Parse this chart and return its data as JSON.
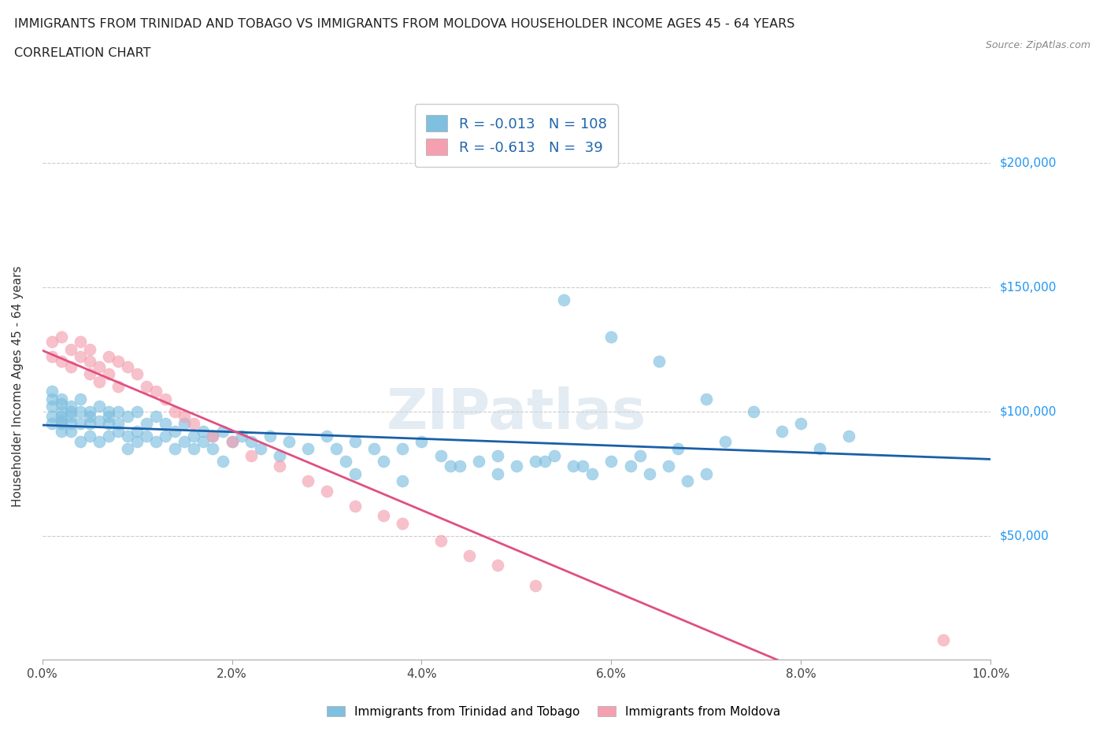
{
  "title_line1": "IMMIGRANTS FROM TRINIDAD AND TOBAGO VS IMMIGRANTS FROM MOLDOVA HOUSEHOLDER INCOME AGES 45 - 64 YEARS",
  "title_line2": "CORRELATION CHART",
  "source_text": "Source: ZipAtlas.com",
  "ylabel": "Householder Income Ages 45 - 64 years",
  "xlim": [
    0.0,
    0.1
  ],
  "ylim": [
    0,
    220000
  ],
  "xticks": [
    0.0,
    0.02,
    0.04,
    0.06,
    0.08,
    0.1
  ],
  "xticklabels": [
    "0.0%",
    "2.0%",
    "4.0%",
    "6.0%",
    "8.0%",
    "10.0%"
  ],
  "yticks": [
    0,
    50000,
    100000,
    150000,
    200000
  ],
  "yticklabels": [
    "",
    "$50,000",
    "$100,000",
    "$150,000",
    "$200,000"
  ],
  "color_tt": "#7fbfdf",
  "color_md": "#f4a0b0",
  "color_tt_line": "#1a5fa8",
  "color_md_line": "#e05080",
  "R_tt": -0.013,
  "N_tt": 108,
  "R_md": -0.613,
  "N_md": 39,
  "legend_label_tt": "Immigrants from Trinidad and Tobago",
  "legend_label_md": "Immigrants from Moldova",
  "watermark": "ZIPatlas",
  "background_color": "#ffffff",
  "grid_color": "#cccccc",
  "tt_x": [
    0.001,
    0.001,
    0.001,
    0.001,
    0.001,
    0.002,
    0.002,
    0.002,
    0.002,
    0.002,
    0.002,
    0.002,
    0.003,
    0.003,
    0.003,
    0.003,
    0.003,
    0.004,
    0.004,
    0.004,
    0.004,
    0.005,
    0.005,
    0.005,
    0.005,
    0.006,
    0.006,
    0.006,
    0.007,
    0.007,
    0.007,
    0.007,
    0.008,
    0.008,
    0.008,
    0.009,
    0.009,
    0.009,
    0.01,
    0.01,
    0.01,
    0.011,
    0.011,
    0.012,
    0.012,
    0.013,
    0.013,
    0.014,
    0.014,
    0.015,
    0.015,
    0.016,
    0.016,
    0.017,
    0.017,
    0.018,
    0.018,
    0.019,
    0.019,
    0.02,
    0.021,
    0.022,
    0.023,
    0.024,
    0.025,
    0.026,
    0.028,
    0.03,
    0.031,
    0.032,
    0.033,
    0.035,
    0.036,
    0.038,
    0.04,
    0.042,
    0.044,
    0.046,
    0.048,
    0.05,
    0.052,
    0.054,
    0.056,
    0.058,
    0.06,
    0.062,
    0.064,
    0.066,
    0.068,
    0.07,
    0.055,
    0.06,
    0.065,
    0.07,
    0.075,
    0.08,
    0.085,
    0.082,
    0.078,
    0.072,
    0.067,
    0.063,
    0.057,
    0.053,
    0.048,
    0.043,
    0.038,
    0.033
  ],
  "tt_y": [
    102000,
    98000,
    105000,
    95000,
    108000,
    100000,
    95000,
    105000,
    92000,
    98000,
    103000,
    96000,
    100000,
    95000,
    102000,
    98000,
    92000,
    100000,
    95000,
    105000,
    88000,
    100000,
    95000,
    90000,
    98000,
    102000,
    96000,
    88000,
    100000,
    95000,
    90000,
    98000,
    100000,
    92000,
    95000,
    98000,
    90000,
    85000,
    100000,
    92000,
    88000,
    95000,
    90000,
    98000,
    88000,
    95000,
    90000,
    92000,
    85000,
    95000,
    88000,
    90000,
    85000,
    92000,
    88000,
    90000,
    85000,
    92000,
    80000,
    88000,
    90000,
    88000,
    85000,
    90000,
    82000,
    88000,
    85000,
    90000,
    85000,
    80000,
    88000,
    85000,
    80000,
    85000,
    88000,
    82000,
    78000,
    80000,
    82000,
    78000,
    80000,
    82000,
    78000,
    75000,
    80000,
    78000,
    75000,
    78000,
    72000,
    75000,
    145000,
    130000,
    120000,
    105000,
    100000,
    95000,
    90000,
    85000,
    92000,
    88000,
    85000,
    82000,
    78000,
    80000,
    75000,
    78000,
    72000,
    75000
  ],
  "md_x": [
    0.001,
    0.001,
    0.002,
    0.002,
    0.003,
    0.003,
    0.004,
    0.004,
    0.005,
    0.005,
    0.005,
    0.006,
    0.006,
    0.007,
    0.007,
    0.008,
    0.008,
    0.009,
    0.01,
    0.011,
    0.012,
    0.013,
    0.014,
    0.015,
    0.016,
    0.018,
    0.02,
    0.022,
    0.025,
    0.028,
    0.03,
    0.033,
    0.036,
    0.038,
    0.042,
    0.045,
    0.048,
    0.052,
    0.095
  ],
  "md_y": [
    128000,
    122000,
    130000,
    120000,
    125000,
    118000,
    128000,
    122000,
    120000,
    115000,
    125000,
    118000,
    112000,
    122000,
    115000,
    120000,
    110000,
    118000,
    115000,
    110000,
    108000,
    105000,
    100000,
    98000,
    95000,
    90000,
    88000,
    82000,
    78000,
    72000,
    68000,
    62000,
    58000,
    55000,
    48000,
    42000,
    38000,
    30000,
    8000
  ]
}
